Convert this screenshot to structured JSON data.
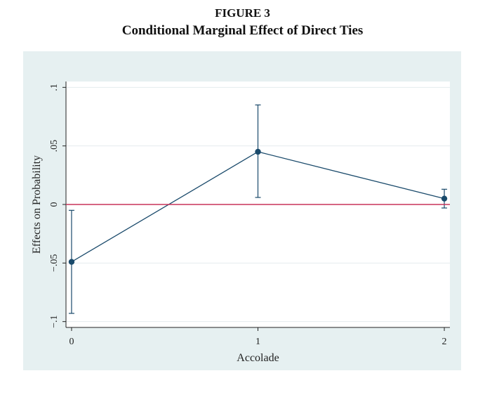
{
  "figure": {
    "label": "FIGURE 3",
    "title": "Conditional Marginal Effect of Direct Ties"
  },
  "colors": {
    "panel_bg": "#e6f0f1",
    "plot_bg": "#ffffff",
    "series": "#1a4a6b",
    "reference_line": "#c8345a",
    "grid": "#e4ecee"
  },
  "chart_data": {
    "type": "line",
    "xlabel": "Accolade",
    "ylabel": "Effects on Probability",
    "x": [
      0,
      1,
      2
    ],
    "x_tick_labels": [
      "0",
      "1",
      "2"
    ],
    "y_ticks": [
      -0.1,
      -0.05,
      0,
      0.05,
      0.1
    ],
    "y_tick_labels": [
      "−.1",
      "−.05",
      "0",
      ".05",
      ".1"
    ],
    "xlim": [
      -0.03,
      2.03
    ],
    "ylim": [
      -0.105,
      0.105
    ],
    "grid": true,
    "reference_line_y": 0,
    "series": [
      {
        "values": [
          -0.049,
          0.045,
          0.005
        ],
        "ci_lower": [
          -0.093,
          0.006,
          -0.003
        ],
        "ci_upper": [
          -0.005,
          0.085,
          0.013
        ]
      }
    ]
  }
}
